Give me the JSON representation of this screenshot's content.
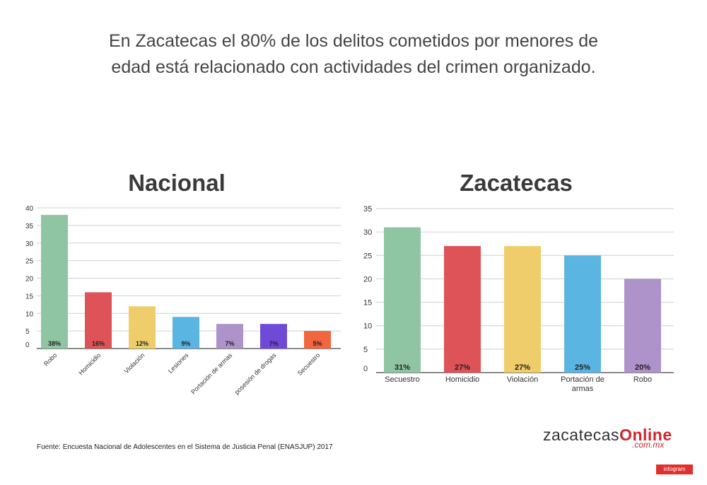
{
  "headline": "En Zacatecas el 80% de los delitos cometidos por menores de edad está relacionado con actividades del crimen organizado.",
  "source": "Fuente: Encuesta Nacional de Adolescentes en el Sistema de Justicia Penal (ENASJUP) 2017",
  "logo": {
    "main": "zacatecas",
    "accent": "Online",
    "sub": ".com.mx"
  },
  "badge": "infogram",
  "chart_data": [
    {
      "type": "bar",
      "title": "Nacional",
      "categories": [
        "Robo",
        "Homicidio",
        "Violación",
        "Lesiones",
        "Portación de armas",
        "posesión de drogas",
        "Secuestro"
      ],
      "values": [
        38,
        16,
        12,
        9,
        7,
        7,
        5
      ],
      "data_labels": [
        "38%",
        "16%",
        "12%",
        "9%",
        "7%",
        "7%",
        "5%"
      ],
      "colors": [
        "#8fc5a2",
        "#dd5358",
        "#efcd6a",
        "#5bb5e3",
        "#ad93c9",
        "#6f4ad8",
        "#f2663e"
      ],
      "ylim": [
        0,
        40
      ],
      "yticks": [
        0,
        5,
        10,
        15,
        20,
        25,
        30,
        35,
        40
      ],
      "grid": true
    },
    {
      "type": "bar",
      "title": "Zacatecas",
      "categories": [
        "Secuestro",
        "Homicidio",
        "Violación",
        "Portación de armas",
        "Robo"
      ],
      "values": [
        31,
        27,
        27,
        25,
        20
      ],
      "data_labels": [
        "31%",
        "27%",
        "27%",
        "25%",
        "20%"
      ],
      "colors": [
        "#8fc5a2",
        "#dd5358",
        "#efcd6a",
        "#5bb5e3",
        "#ad93c9"
      ],
      "ylim": [
        0,
        35
      ],
      "yticks": [
        0,
        5,
        10,
        15,
        20,
        25,
        30,
        35
      ],
      "grid": true
    }
  ]
}
